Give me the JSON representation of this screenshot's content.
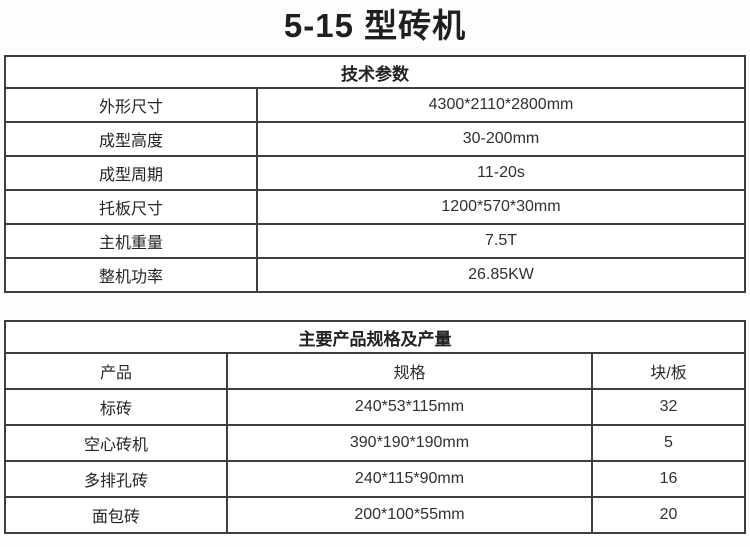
{
  "page": {
    "title": "5-15 型砖机"
  },
  "tech_table": {
    "header": "技术参数",
    "rows": [
      {
        "label": "外形尺寸",
        "value": "4300*2110*2800mm"
      },
      {
        "label": "成型高度",
        "value": "30-200mm"
      },
      {
        "label": "成型周期",
        "value": "11-20s"
      },
      {
        "label": "托板尺寸",
        "value": "1200*570*30mm"
      },
      {
        "label": "主机重量",
        "value": "7.5T"
      },
      {
        "label": "整机功率",
        "value": "26.85KW"
      }
    ]
  },
  "product_table": {
    "header": "主要产品规格及产量",
    "columns": [
      "产品",
      "规格",
      "块/板"
    ],
    "rows": [
      {
        "product": "标砖",
        "spec": "240*53*115mm",
        "qty": "32"
      },
      {
        "product": "空心砖机",
        "spec": "390*190*190mm",
        "qty": "5"
      },
      {
        "product": "多排孔砖",
        "spec": "240*115*90mm",
        "qty": "16"
      },
      {
        "product": "面包砖",
        "spec": "200*100*55mm",
        "qty": "20"
      }
    ]
  },
  "colors": {
    "background": "#fdfdfc",
    "table_background": "#ffffff",
    "border": "#3e3e3e",
    "text": "#2c2c2c"
  }
}
